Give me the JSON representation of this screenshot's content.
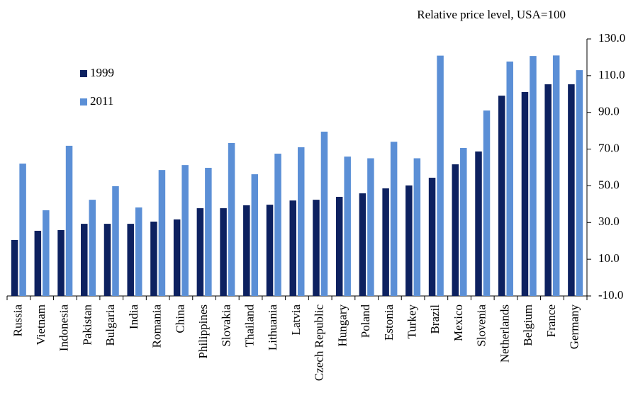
{
  "chart_data": {
    "type": "bar",
    "subtitle": "Relative price level, USA=100",
    "categories": [
      "Russia",
      "Vietnam",
      "Indonesia",
      "Pakistan",
      "Bulgaria",
      "India",
      "Romania",
      "China",
      "Philippines",
      "Slovakia",
      "Thailand",
      "Lithuania",
      "Latvia",
      "Czech Republic",
      "Hungary",
      "Poland",
      "Estonia",
      "Turkey",
      "Brazil",
      "Mexico",
      "Slovenia",
      "Netherlands",
      "Belgium",
      "France",
      "Germany"
    ],
    "series": [
      {
        "name": "1999",
        "color": "#0d2160",
        "values": [
          20.5,
          25.5,
          25.9,
          29.3,
          29.3,
          29.3,
          30.5,
          31.7,
          37.8,
          37.8,
          39.4,
          39.7,
          42.0,
          42.4,
          44.0,
          45.9,
          48.6,
          50.2,
          54.4,
          61.7,
          68.7,
          99.1,
          101.1,
          105.3,
          105.3
        ]
      },
      {
        "name": "2011",
        "color": "#5b8fd6",
        "values": [
          62.1,
          36.7,
          71.8,
          42.4,
          49.8,
          38.2,
          58.6,
          61.3,
          59.8,
          73.3,
          56.3,
          67.5,
          71.0,
          79.5,
          65.9,
          65.0,
          74.0,
          65.0,
          120.9,
          70.6,
          91.0,
          117.7,
          120.7,
          121.0,
          113.0
        ]
      }
    ],
    "ylim": [
      -10,
      130
    ],
    "yticks": [
      {
        "value": -10,
        "label": "-10.0"
      },
      {
        "value": 10,
        "label": "10.0"
      },
      {
        "value": 30,
        "label": "30.0"
      },
      {
        "value": 50,
        "label": "50.0"
      },
      {
        "value": 70,
        "label": "70.0"
      },
      {
        "value": 90,
        "label": "90.0"
      },
      {
        "value": 110,
        "label": "110.0"
      },
      {
        "value": 130,
        "label": "130.0"
      }
    ],
    "y_axis_side": "right",
    "grid": false
  }
}
